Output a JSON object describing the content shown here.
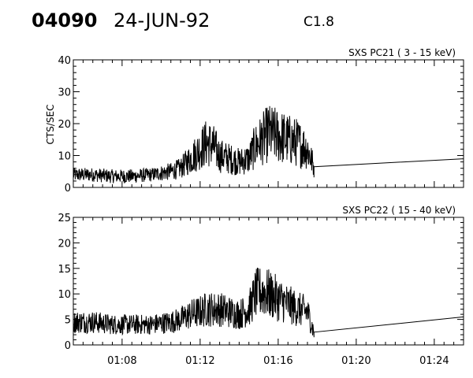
{
  "header": {
    "event_id": "04090",
    "date": "24-JUN-92",
    "flare_class": "C1.8"
  },
  "colors": {
    "trace": "#000000",
    "axes": "#000000",
    "background": "#ffffff"
  },
  "chart_data": [
    {
      "type": "line",
      "title": "SXS PC21  (  3 - 15 keV)",
      "ylabel": "CTS/SEC",
      "xlabel": "",
      "x_unit": "UT time (HH:MM)",
      "xlim": [
        "01:05:30",
        "01:25:30"
      ],
      "ylim": [
        0,
        40
      ],
      "yticks": [
        0,
        10,
        20,
        30,
        40
      ],
      "xticks": [
        "01:08",
        "01:12",
        "01:16",
        "01:20",
        "01:24"
      ],
      "grid": false,
      "series": [
        {
          "x": [
            "01:05:30",
            "01:06:30",
            "01:07:30",
            "01:08:30",
            "01:09:30",
            "01:10:30",
            "01:11:00",
            "01:11:30",
            "01:12:00",
            "01:12:20",
            "01:12:40",
            "01:13:00",
            "01:13:30",
            "01:14:00",
            "01:14:30",
            "01:14:50",
            "01:15:10",
            "01:15:30",
            "01:16:00",
            "01:16:30",
            "01:17:00",
            "01:17:30",
            "01:17:50",
            "01:25:30"
          ],
          "y": [
            4,
            4,
            3.5,
            3.5,
            4,
            5,
            6,
            9,
            12,
            14,
            13,
            10,
            9,
            8,
            9,
            13,
            15,
            17,
            16,
            15,
            14,
            12,
            6.5,
            9
          ]
        }
      ]
    },
    {
      "type": "line",
      "title": "SXS PC22  ( 15 - 40 keV)",
      "ylabel": "",
      "xlabel": "",
      "x_unit": "UT time (HH:MM)",
      "xlim": [
        "01:05:30",
        "01:25:30"
      ],
      "ylim": [
        0,
        25
      ],
      "yticks": [
        0,
        5,
        10,
        15,
        20,
        25
      ],
      "xticks": [
        "01:08",
        "01:12",
        "01:16",
        "01:20",
        "01:24"
      ],
      "grid": false,
      "series": [
        {
          "x": [
            "01:05:30",
            "01:06:30",
            "01:07:30",
            "01:08:30",
            "01:09:30",
            "01:10:30",
            "01:11:00",
            "01:11:30",
            "01:12:00",
            "01:12:20",
            "01:12:40",
            "01:13:00",
            "01:13:30",
            "01:14:00",
            "01:14:30",
            "01:14:50",
            "01:15:10",
            "01:15:30",
            "01:16:00",
            "01:16:30",
            "01:17:00",
            "01:17:30",
            "01:17:50",
            "01:25:30"
          ],
          "y": [
            4.5,
            4.5,
            4,
            4,
            4,
            4.5,
            5,
            6,
            6.5,
            7,
            7,
            7,
            6.5,
            6,
            7,
            10,
            10.5,
            10,
            9,
            8,
            7,
            6.5,
            2.5,
            5.5
          ]
        }
      ]
    }
  ]
}
